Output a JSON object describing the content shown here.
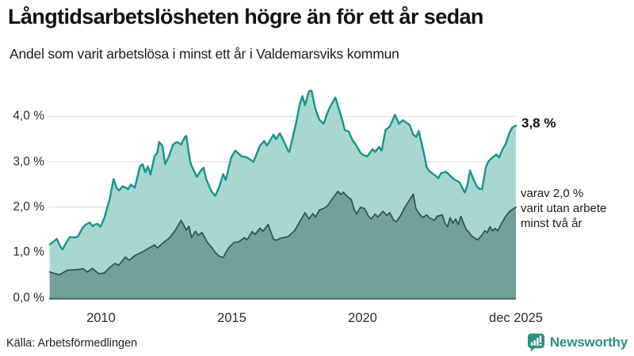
{
  "header": {
    "title": "Långtidsarbetslösheten högre än för ett år sedan",
    "subtitle": "Andel som varit arbetslösa i minst ett år i Valdemarsviks kommun"
  },
  "chart_data": {
    "type": "area",
    "title": "Långtidsarbetslösheten högre än för ett år sedan",
    "subtitle": "Andel som varit arbetslösa i minst ett år i Valdemarsviks kommun",
    "legend": "none",
    "grid": "horizontal",
    "x_axis": {
      "range": [
        2008.04,
        2025.92
      ],
      "ticks": [
        {
          "label": "2010",
          "year": 2010
        },
        {
          "label": "2015",
          "year": 2015
        },
        {
          "label": "2020",
          "year": 2020
        },
        {
          "label": "dec 2025",
          "year": 2025.92
        }
      ]
    },
    "y_axis": {
      "range": [
        0,
        4.8
      ],
      "unit": "%",
      "ticks": [
        {
          "label": "0,0 %",
          "value": 0
        },
        {
          "label": "1,0 %",
          "value": 1
        },
        {
          "label": "2,0 %",
          "value": 2
        },
        {
          "label": "3,0 %",
          "value": 3
        },
        {
          "label": "4,0 %",
          "value": 4
        }
      ]
    },
    "style": {
      "grid_color": "#d9dbdf",
      "axis_color": "#4a746d",
      "background": "#ffffff"
    },
    "series": [
      {
        "name": "Arbetslösa minst ett år",
        "end_value": "3,8 %",
        "line_color": "#17948a",
        "fill_color": "#a4d5d0",
        "line_width": 2.4,
        "points": [
          [
            2008.04,
            1.18
          ],
          [
            2008.2,
            1.25
          ],
          [
            2008.31,
            1.3
          ],
          [
            2008.45,
            1.12
          ],
          [
            2008.53,
            1.07
          ],
          [
            2008.7,
            1.25
          ],
          [
            2008.81,
            1.34
          ],
          [
            2009.0,
            1.33
          ],
          [
            2009.12,
            1.36
          ],
          [
            2009.3,
            1.55
          ],
          [
            2009.42,
            1.62
          ],
          [
            2009.57,
            1.66
          ],
          [
            2009.68,
            1.58
          ],
          [
            2009.77,
            1.62
          ],
          [
            2009.87,
            1.63
          ],
          [
            2009.98,
            1.57
          ],
          [
            2010.13,
            1.77
          ],
          [
            2010.33,
            2.18
          ],
          [
            2010.48,
            2.62
          ],
          [
            2010.6,
            2.42
          ],
          [
            2010.68,
            2.37
          ],
          [
            2010.83,
            2.46
          ],
          [
            2010.95,
            2.43
          ],
          [
            2011.04,
            2.4
          ],
          [
            2011.14,
            2.5
          ],
          [
            2011.29,
            2.43
          ],
          [
            2011.49,
            2.9
          ],
          [
            2011.59,
            2.95
          ],
          [
            2011.69,
            2.77
          ],
          [
            2011.79,
            2.9
          ],
          [
            2011.89,
            2.72
          ],
          [
            2012.05,
            3.13
          ],
          [
            2012.15,
            3.2
          ],
          [
            2012.22,
            3.44
          ],
          [
            2012.35,
            3.35
          ],
          [
            2012.45,
            2.95
          ],
          [
            2012.6,
            3.13
          ],
          [
            2012.75,
            3.38
          ],
          [
            2012.9,
            3.44
          ],
          [
            2013.06,
            3.38
          ],
          [
            2013.21,
            3.55
          ],
          [
            2013.26,
            3.57
          ],
          [
            2013.41,
            3.0
          ],
          [
            2013.51,
            2.85
          ],
          [
            2013.66,
            2.67
          ],
          [
            2013.81,
            2.8
          ],
          [
            2013.92,
            2.87
          ],
          [
            2014.02,
            2.62
          ],
          [
            2014.22,
            2.35
          ],
          [
            2014.37,
            2.25
          ],
          [
            2014.52,
            2.45
          ],
          [
            2014.67,
            2.73
          ],
          [
            2014.77,
            2.6
          ],
          [
            2014.98,
            3.1
          ],
          [
            2015.13,
            3.25
          ],
          [
            2015.38,
            3.12
          ],
          [
            2015.58,
            3.1
          ],
          [
            2015.78,
            3.02
          ],
          [
            2015.83,
            3.0
          ],
          [
            2016.08,
            3.36
          ],
          [
            2016.24,
            3.46
          ],
          [
            2016.34,
            3.36
          ],
          [
            2016.49,
            3.5
          ],
          [
            2016.59,
            3.6
          ],
          [
            2016.69,
            3.5
          ],
          [
            2016.84,
            3.63
          ],
          [
            2016.99,
            3.45
          ],
          [
            2017.15,
            3.25
          ],
          [
            2017.2,
            3.22
          ],
          [
            2017.45,
            3.84
          ],
          [
            2017.6,
            4.28
          ],
          [
            2017.7,
            4.45
          ],
          [
            2017.8,
            4.25
          ],
          [
            2017.95,
            4.56
          ],
          [
            2018.05,
            4.57
          ],
          [
            2018.2,
            4.16
          ],
          [
            2018.35,
            3.93
          ],
          [
            2018.51,
            3.84
          ],
          [
            2018.71,
            4.16
          ],
          [
            2018.96,
            4.42
          ],
          [
            2019.22,
            3.93
          ],
          [
            2019.32,
            3.7
          ],
          [
            2019.47,
            3.67
          ],
          [
            2019.62,
            3.47
          ],
          [
            2019.72,
            3.4
          ],
          [
            2019.92,
            3.2
          ],
          [
            2020.02,
            3.15
          ],
          [
            2020.18,
            3.12
          ],
          [
            2020.38,
            3.28
          ],
          [
            2020.48,
            3.22
          ],
          [
            2020.63,
            3.33
          ],
          [
            2020.73,
            3.25
          ],
          [
            2020.88,
            3.7
          ],
          [
            2021.04,
            3.78
          ],
          [
            2021.24,
            4.04
          ],
          [
            2021.39,
            3.84
          ],
          [
            2021.54,
            3.92
          ],
          [
            2021.79,
            3.82
          ],
          [
            2021.94,
            3.6
          ],
          [
            2022.05,
            3.55
          ],
          [
            2022.15,
            3.68
          ],
          [
            2022.35,
            3.18
          ],
          [
            2022.45,
            2.88
          ],
          [
            2022.55,
            2.8
          ],
          [
            2022.8,
            2.69
          ],
          [
            2022.9,
            2.64
          ],
          [
            2023.0,
            2.75
          ],
          [
            2023.2,
            2.78
          ],
          [
            2023.41,
            2.66
          ],
          [
            2023.51,
            2.61
          ],
          [
            2023.71,
            2.55
          ],
          [
            2023.91,
            2.32
          ],
          [
            2024.01,
            2.49
          ],
          [
            2024.11,
            2.81
          ],
          [
            2024.21,
            2.66
          ],
          [
            2024.37,
            2.46
          ],
          [
            2024.47,
            2.4
          ],
          [
            2024.57,
            2.4
          ],
          [
            2024.72,
            2.9
          ],
          [
            2024.82,
            3.02
          ],
          [
            2024.97,
            3.1
          ],
          [
            2025.12,
            3.16
          ],
          [
            2025.22,
            3.1
          ],
          [
            2025.37,
            3.3
          ],
          [
            2025.47,
            3.39
          ],
          [
            2025.62,
            3.65
          ],
          [
            2025.73,
            3.76
          ],
          [
            2025.92,
            3.8
          ]
        ]
      },
      {
        "name": "varav utan arbete minst två år",
        "end_value": "2,0 %",
        "line_color": "#30504b",
        "fill_color": "#6f9e99",
        "line_width": 1.7,
        "points": [
          [
            2008.04,
            0.57
          ],
          [
            2008.41,
            0.51
          ],
          [
            2008.71,
            0.61
          ],
          [
            2009.02,
            0.62
          ],
          [
            2009.32,
            0.64
          ],
          [
            2009.47,
            0.57
          ],
          [
            2009.67,
            0.65
          ],
          [
            2009.92,
            0.53
          ],
          [
            2010.13,
            0.55
          ],
          [
            2010.33,
            0.67
          ],
          [
            2010.53,
            0.76
          ],
          [
            2010.68,
            0.72
          ],
          [
            2010.93,
            0.9
          ],
          [
            2011.08,
            0.83
          ],
          [
            2011.34,
            0.95
          ],
          [
            2011.54,
            1.0
          ],
          [
            2011.84,
            1.1
          ],
          [
            2012.05,
            1.17
          ],
          [
            2012.15,
            1.1
          ],
          [
            2012.35,
            1.2
          ],
          [
            2012.63,
            1.33
          ],
          [
            2012.85,
            1.5
          ],
          [
            2013.06,
            1.71
          ],
          [
            2013.26,
            1.5
          ],
          [
            2013.36,
            1.58
          ],
          [
            2013.46,
            1.33
          ],
          [
            2013.61,
            1.47
          ],
          [
            2013.71,
            1.38
          ],
          [
            2013.86,
            1.44
          ],
          [
            2014.07,
            1.22
          ],
          [
            2014.22,
            1.12
          ],
          [
            2014.37,
            1.0
          ],
          [
            2014.52,
            0.92
          ],
          [
            2014.67,
            0.89
          ],
          [
            2014.87,
            1.1
          ],
          [
            2015.08,
            1.22
          ],
          [
            2015.28,
            1.24
          ],
          [
            2015.48,
            1.33
          ],
          [
            2015.58,
            1.28
          ],
          [
            2015.78,
            1.46
          ],
          [
            2015.89,
            1.4
          ],
          [
            2016.08,
            1.54
          ],
          [
            2016.19,
            1.47
          ],
          [
            2016.39,
            1.62
          ],
          [
            2016.59,
            1.3
          ],
          [
            2016.69,
            1.27
          ],
          [
            2016.89,
            1.32
          ],
          [
            2017.15,
            1.35
          ],
          [
            2017.3,
            1.43
          ],
          [
            2017.4,
            1.48
          ],
          [
            2017.6,
            1.68
          ],
          [
            2017.8,
            1.88
          ],
          [
            2017.95,
            1.74
          ],
          [
            2018.1,
            1.86
          ],
          [
            2018.2,
            1.78
          ],
          [
            2018.35,
            1.94
          ],
          [
            2018.51,
            1.97
          ],
          [
            2018.66,
            2.03
          ],
          [
            2018.86,
            2.2
          ],
          [
            2019.06,
            2.35
          ],
          [
            2019.17,
            2.28
          ],
          [
            2019.27,
            2.33
          ],
          [
            2019.42,
            2.23
          ],
          [
            2019.57,
            2.17
          ],
          [
            2019.67,
            1.97
          ],
          [
            2019.77,
            1.85
          ],
          [
            2019.92,
            2.0
          ],
          [
            2020.08,
            1.97
          ],
          [
            2020.23,
            1.8
          ],
          [
            2020.33,
            1.74
          ],
          [
            2020.48,
            1.85
          ],
          [
            2020.58,
            1.78
          ],
          [
            2020.78,
            1.91
          ],
          [
            2020.93,
            1.82
          ],
          [
            2021.04,
            1.88
          ],
          [
            2021.19,
            1.71
          ],
          [
            2021.29,
            1.68
          ],
          [
            2021.44,
            1.8
          ],
          [
            2021.59,
            1.97
          ],
          [
            2021.84,
            2.2
          ],
          [
            2021.94,
            2.29
          ],
          [
            2022.04,
            1.97
          ],
          [
            2022.14,
            1.88
          ],
          [
            2022.3,
            1.77
          ],
          [
            2022.45,
            1.83
          ],
          [
            2022.55,
            1.77
          ],
          [
            2022.75,
            1.71
          ],
          [
            2022.85,
            1.8
          ],
          [
            2023.05,
            1.83
          ],
          [
            2023.15,
            1.65
          ],
          [
            2023.25,
            1.57
          ],
          [
            2023.35,
            1.77
          ],
          [
            2023.45,
            1.65
          ],
          [
            2023.56,
            1.74
          ],
          [
            2023.66,
            1.62
          ],
          [
            2023.76,
            1.8
          ],
          [
            2023.86,
            1.65
          ],
          [
            2023.96,
            1.51
          ],
          [
            2024.06,
            1.45
          ],
          [
            2024.16,
            1.37
          ],
          [
            2024.31,
            1.31
          ],
          [
            2024.41,
            1.28
          ],
          [
            2024.57,
            1.39
          ],
          [
            2024.67,
            1.48
          ],
          [
            2024.77,
            1.44
          ],
          [
            2024.87,
            1.57
          ],
          [
            2024.97,
            1.48
          ],
          [
            2025.07,
            1.53
          ],
          [
            2025.17,
            1.48
          ],
          [
            2025.32,
            1.65
          ],
          [
            2025.47,
            1.8
          ],
          [
            2025.62,
            1.91
          ],
          [
            2025.92,
            2.0
          ]
        ]
      }
    ],
    "annotations": {
      "end_value_label": "3,8 %",
      "wedge_line1": "varav 2,0 %",
      "wedge_line2": "varit utan arbete",
      "wedge_line3": "minst två år"
    }
  },
  "footer": {
    "source": "Källa: Arbetsförmedlingen",
    "brand": "Newsworthy"
  }
}
